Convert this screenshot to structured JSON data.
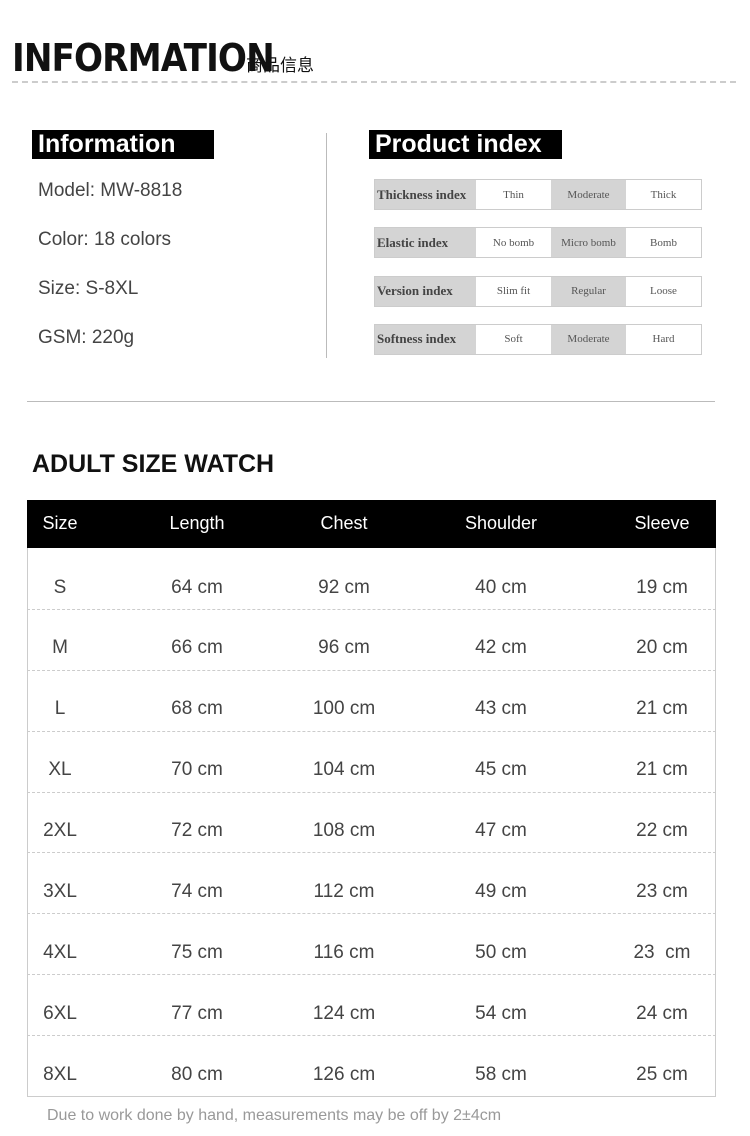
{
  "header": {
    "title": "INFORMATION",
    "subtitle": "商品信息"
  },
  "info": {
    "heading": "Information",
    "items": [
      "Model: MW-8818",
      "Color: 18 colors",
      "Size: S-8XL",
      "GSM: 220g"
    ]
  },
  "product_index": {
    "heading": "Product index",
    "rows": [
      {
        "label": "Thickness index",
        "options": [
          "Thin",
          "Moderate",
          "Thick"
        ],
        "selected": 1
      },
      {
        "label": "Elastic index",
        "options": [
          "No bomb",
          "Micro bomb",
          "Bomb"
        ],
        "selected": 1
      },
      {
        "label": "Version index",
        "options": [
          "Slim fit",
          "Regular",
          "Loose"
        ],
        "selected": 1
      },
      {
        "label": "Softness index",
        "options": [
          "Soft",
          "Moderate",
          "Hard"
        ],
        "selected": 1
      }
    ]
  },
  "size_table": {
    "title": "ADULT SIZE WATCH",
    "columns": [
      "Size",
      "Length",
      "Chest",
      "Shoulder",
      "Sleeve"
    ],
    "rows": [
      [
        "S",
        "64 cm",
        "92 cm",
        "40 cm",
        "19 cm"
      ],
      [
        "M",
        "66 cm",
        "96 cm",
        "42 cm",
        "20 cm"
      ],
      [
        "L",
        "68 cm",
        "100 cm",
        "43 cm",
        "21 cm"
      ],
      [
        "XL",
        "70 cm",
        "104 cm",
        "45 cm",
        "21 cm"
      ],
      [
        "2XL",
        "72 cm",
        "108 cm",
        "47 cm",
        "22 cm"
      ],
      [
        "3XL",
        "74 cm",
        "112 cm",
        "49 cm",
        "23 cm"
      ],
      [
        "4XL",
        "75 cm",
        "116 cm",
        "50 cm",
        "23  cm"
      ],
      [
        "6XL",
        "77 cm",
        "124 cm",
        "54 cm",
        "24 cm"
      ],
      [
        "8XL",
        "80 cm",
        "126 cm",
        "58 cm",
        "25 cm"
      ]
    ]
  },
  "footer": {
    "note": "Due to work done by hand, measurements may be off by 2±4cm"
  }
}
